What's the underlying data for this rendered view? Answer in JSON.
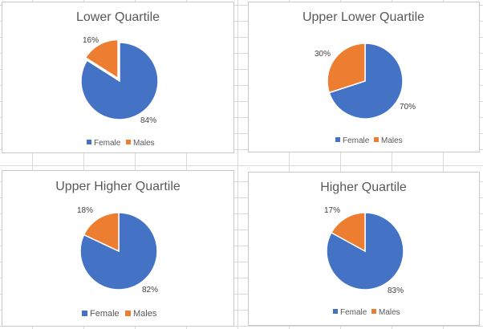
{
  "colors": {
    "female": "#4472C4",
    "males": "#ED7D31"
  },
  "chart_data": [
    {
      "type": "pie",
      "title": "Lower Quartile",
      "slices": [
        {
          "name": "Female",
          "value": 84,
          "label": "84%"
        },
        {
          "name": "Males",
          "value": 16,
          "label": "16%"
        }
      ],
      "legend_position": "bottom",
      "exploded": "Males"
    },
    {
      "type": "pie",
      "title": "Upper Lower Quartile",
      "slices": [
        {
          "name": "Female",
          "value": 70,
          "label": "70%"
        },
        {
          "name": "Males",
          "value": 30,
          "label": "30%"
        }
      ],
      "legend_position": "bottom"
    },
    {
      "type": "pie",
      "title": "Upper Higher Quartile",
      "slices": [
        {
          "name": "Female",
          "value": 82,
          "label": "82%"
        },
        {
          "name": "Males",
          "value": 18,
          "label": "18%"
        }
      ],
      "legend_position": "bottom"
    },
    {
      "type": "pie",
      "title": "Higher Quartile",
      "slices": [
        {
          "name": "Female",
          "value": 83,
          "label": "83%"
        },
        {
          "name": "Males",
          "value": 17,
          "label": "17%"
        }
      ],
      "legend_position": "bottom"
    }
  ]
}
